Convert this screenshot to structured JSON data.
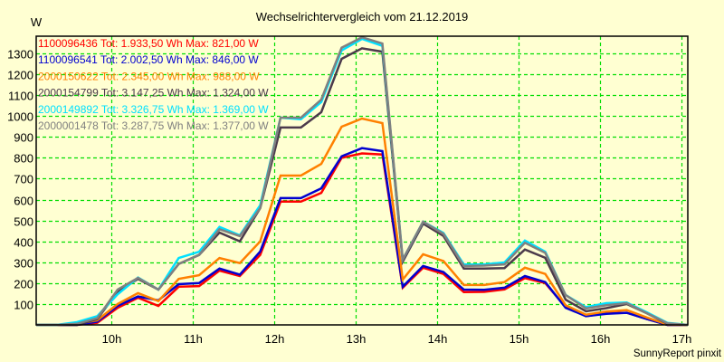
{
  "chart_data": {
    "type": "line",
    "title": "Wechselrichtervergleich vom 21.12.2019",
    "ylabel": "W",
    "xlabel": "",
    "credit": "SunnyReport pinxit",
    "grid": true,
    "ylim": [
      0,
      1390
    ],
    "xlim_hours": [
      9.1,
      17.083
    ],
    "yticks": [
      100,
      200,
      300,
      400,
      500,
      600,
      700,
      800,
      900,
      1000,
      1100,
      1200,
      1300
    ],
    "ytick_labels": [
      "100",
      "200",
      "300",
      "400",
      "500",
      "600",
      "700",
      "800",
      "900",
      "1000",
      "1100",
      "1200",
      "1300"
    ],
    "xticks_hours": [
      10,
      11,
      12,
      13,
      14,
      15,
      16,
      17
    ],
    "xtick_labels": [
      "10h",
      "11h",
      "12h",
      "13h",
      "14h",
      "15h",
      "16h",
      "17h"
    ],
    "x_hours": [
      9.083,
      9.333,
      9.583,
      9.833,
      10.083,
      10.333,
      10.583,
      10.833,
      11.083,
      11.333,
      11.583,
      11.833,
      12.083,
      12.333,
      12.583,
      12.833,
      13.083,
      13.333,
      13.583,
      13.833,
      14.083,
      14.333,
      14.583,
      14.833,
      15.083,
      15.333,
      15.583,
      15.833,
      16.083,
      16.333,
      16.583,
      16.833,
      17.083
    ],
    "legend_position": "top-left",
    "series": [
      {
        "name": "1100096436",
        "legend": "1100096436 Tot: 1.933,50 Wh Max: 821,00 W",
        "color": "#ff0000",
        "values": [
          0,
          0,
          0,
          10,
          82,
          130,
          91,
          183,
          186,
          260,
          234,
          335,
          590,
          590,
          632,
          800,
          821,
          816,
          178,
          274,
          244,
          157,
          158,
          170,
          224,
          200,
          85,
          42,
          56,
          58,
          28,
          0,
          0
        ]
      },
      {
        "name": "1100096541",
        "legend": "1100096541 Tot: 2.002,50 Wh Max: 846,00 W",
        "color": "#0000d0",
        "values": [
          0,
          0,
          0,
          15,
          92,
          136,
          118,
          195,
          200,
          270,
          241,
          351,
          607,
          607,
          654,
          807,
          846,
          832,
          183,
          282,
          253,
          169,
          168,
          178,
          234,
          205,
          82,
          42,
          53,
          58,
          28,
          0,
          0
        ]
      },
      {
        "name": "2000150622",
        "legend": "2000150622 Tot: 2.345,00 Wh Max: 988,00 W",
        "color": "#ff8000",
        "values": [
          0,
          0,
          5,
          22,
          100,
          152,
          114,
          220,
          238,
          320,
          296,
          400,
          715,
          715,
          771,
          949,
          988,
          966,
          217,
          338,
          306,
          191,
          191,
          205,
          274,
          244,
          94,
          49,
          64,
          71,
          35,
          2,
          0
        ]
      },
      {
        "name": "2000154799",
        "legend": "2000154799 Tot: 3.147,25 Wh Max: 1.324,00 W",
        "color": "#4b3a4b",
        "values": [
          0,
          0,
          0,
          28,
          160,
          220,
          169,
          292,
          335,
          442,
          400,
          559,
          945,
          945,
          1018,
          1274,
          1324,
          1308,
          303,
          485,
          426,
          270,
          270,
          272,
          361,
          321,
          121,
          65,
          80,
          100,
          55,
          5,
          0
        ]
      },
      {
        "name": "2000149892",
        "legend": "2000149892 Tot: 3.326,75 Wh Max: 1.369,00 W",
        "color": "#00e0ff",
        "values": [
          0,
          0,
          13,
          42,
          147,
          227,
          169,
          320,
          350,
          469,
          429,
          573,
          992,
          985,
          1067,
          1314,
          1369,
          1336,
          313,
          494,
          440,
          289,
          290,
          299,
          404,
          350,
          143,
          85,
          104,
          107,
          60,
          10,
          0
        ]
      },
      {
        "name": "2000001478",
        "legend": "2000001478 Tot: 3.287,75 Wh Max: 1.377,00 W",
        "color": "#808080",
        "values": [
          0,
          0,
          5,
          32,
          169,
          225,
          169,
          292,
          335,
          458,
          425,
          559,
          992,
          992,
          1079,
          1327,
          1377,
          1347,
          313,
          494,
          436,
          282,
          284,
          290,
          393,
          345,
          143,
          79,
          94,
          104,
          55,
          8,
          0
        ]
      }
    ],
    "colors": {
      "background": "#ffffd2",
      "grid": "#00dd00",
      "axis": "#000000"
    }
  }
}
